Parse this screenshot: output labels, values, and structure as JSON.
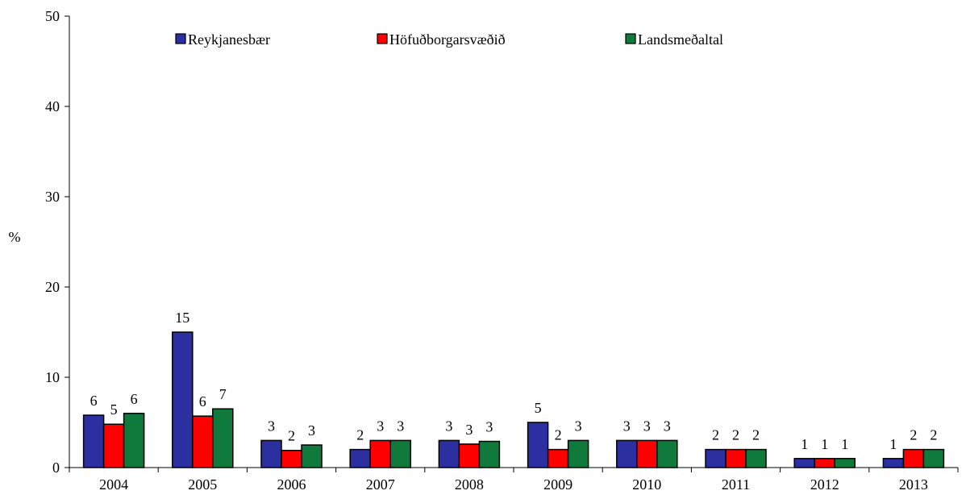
{
  "chart_data": {
    "type": "bar",
    "title": "",
    "xlabel": "",
    "ylabel": "%",
    "ylim": [
      0,
      50
    ],
    "yticks": [
      0,
      10,
      20,
      30,
      40,
      50
    ],
    "grid": false,
    "legend_position": "top",
    "categories": [
      "2004",
      "2005",
      "2006",
      "2007",
      "2008",
      "2009",
      "2010",
      "2011",
      "2012",
      "2013"
    ],
    "series": [
      {
        "name": "Reykjanesbær",
        "color": "#2B2FA0",
        "values": [
          5.8,
          15.0,
          3.0,
          2.0,
          3.0,
          5.0,
          3.0,
          2.0,
          1.0,
          1.0
        ],
        "labels": [
          "6",
          "15",
          "3",
          "2",
          "3",
          "5",
          "3",
          "2",
          "1",
          "1"
        ]
      },
      {
        "name": "Höfuðborgarsvæðið",
        "color": "#FF0000",
        "values": [
          4.8,
          5.7,
          1.9,
          3.0,
          2.6,
          2.0,
          3.0,
          2.0,
          1.0,
          2.0
        ],
        "labels": [
          "5",
          "6",
          "2",
          "3",
          "3",
          "2",
          "3",
          "2",
          "1",
          "2"
        ]
      },
      {
        "name": "Landsmeðaltal",
        "color": "#0F7A3C",
        "values": [
          6.0,
          6.5,
          2.5,
          3.0,
          2.9,
          3.0,
          3.0,
          2.0,
          1.0,
          2.0
        ],
        "labels": [
          "6",
          "7",
          "3",
          "3",
          "3",
          "3",
          "3",
          "2",
          "1",
          "2"
        ]
      }
    ]
  }
}
